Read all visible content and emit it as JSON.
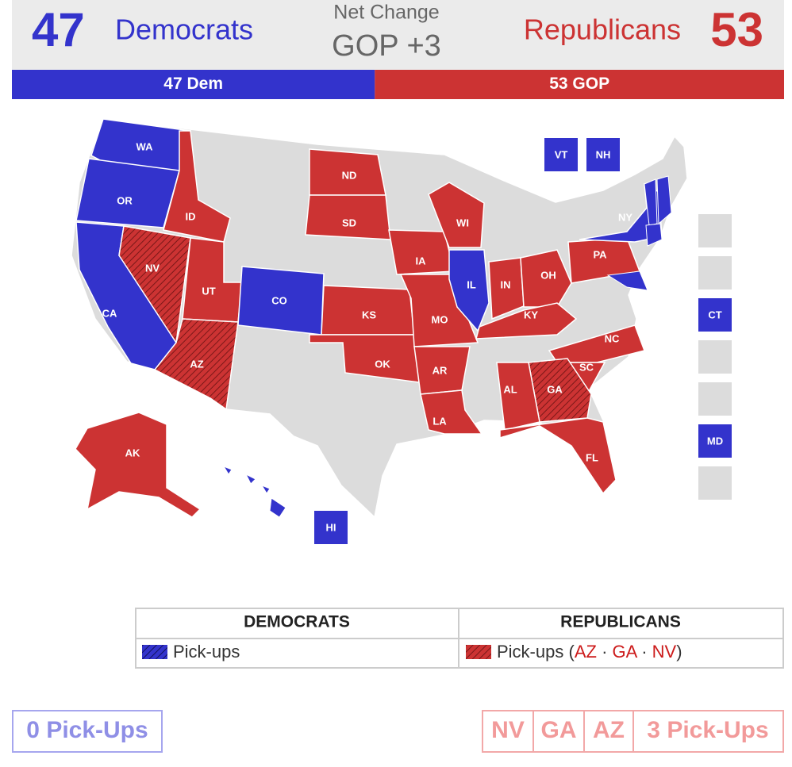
{
  "header": {
    "dem_count": "47",
    "dem_label": "Democrats",
    "net_change_label": "Net Change",
    "net_change": "GOP +3",
    "rep_label": "Republicans",
    "rep_count": "53"
  },
  "balance_bar": {
    "dem": {
      "label": "47 Dem",
      "seats": 47
    },
    "rep": {
      "label": "53 GOP",
      "seats": 53
    }
  },
  "map": {
    "states": [
      {
        "label": "WA",
        "party": "dem",
        "pickup": false
      },
      {
        "label": "OR",
        "party": "dem",
        "pickup": false
      },
      {
        "label": "CA",
        "party": "dem",
        "pickup": false
      },
      {
        "label": "ID",
        "party": "rep",
        "pickup": false
      },
      {
        "label": "NV",
        "party": "rep",
        "pickup": true
      },
      {
        "label": "UT",
        "party": "rep",
        "pickup": false
      },
      {
        "label": "AZ",
        "party": "rep",
        "pickup": true
      },
      {
        "label": "CO",
        "party": "dem",
        "pickup": false
      },
      {
        "label": "ND",
        "party": "rep",
        "pickup": false
      },
      {
        "label": "SD",
        "party": "rep",
        "pickup": false
      },
      {
        "label": "KS",
        "party": "rep",
        "pickup": false
      },
      {
        "label": "OK",
        "party": "rep",
        "pickup": false
      },
      {
        "label": "IA",
        "party": "rep",
        "pickup": false
      },
      {
        "label": "MO",
        "party": "rep",
        "pickup": false
      },
      {
        "label": "AR",
        "party": "rep",
        "pickup": false
      },
      {
        "label": "LA",
        "party": "rep",
        "pickup": false
      },
      {
        "label": "WI",
        "party": "rep",
        "pickup": false
      },
      {
        "label": "IL",
        "party": "dem",
        "pickup": false
      },
      {
        "label": "IN",
        "party": "rep",
        "pickup": false
      },
      {
        "label": "OH",
        "party": "rep",
        "pickup": false
      },
      {
        "label": "KY",
        "party": "rep",
        "pickup": false
      },
      {
        "label": "PA",
        "party": "rep",
        "pickup": false
      },
      {
        "label": "NY",
        "party": "dem",
        "pickup": false
      },
      {
        "label": "NC",
        "party": "rep",
        "pickup": false
      },
      {
        "label": "SC",
        "party": "rep",
        "pickup": false
      },
      {
        "label": "GA",
        "party": "rep",
        "pickup": true
      },
      {
        "label": "AL",
        "party": "rep",
        "pickup": false
      },
      {
        "label": "FL",
        "party": "rep",
        "pickup": false
      },
      {
        "label": "AK",
        "party": "rep",
        "pickup": false
      }
    ],
    "boxes": [
      {
        "label": "VT",
        "party": "dem"
      },
      {
        "label": "NH",
        "party": "dem"
      },
      {
        "label": "CT",
        "party": "dem"
      },
      {
        "label": "MD",
        "party": "dem"
      },
      {
        "label": "HI",
        "party": "dem"
      }
    ]
  },
  "legend": {
    "headers": [
      "DEMOCRATS",
      "REPUBLICANS"
    ],
    "dem_pickups": "Pick-ups",
    "rep_pickups": {
      "label": "Pick-ups",
      "open": "(",
      "items": [
        "AZ",
        "GA",
        "NV"
      ],
      "sep": "·",
      "close": ")"
    }
  },
  "footer": {
    "dem": "0 Pick-Ups",
    "rep_states": [
      "NV",
      "GA",
      "AZ"
    ],
    "rep": "3 Pick-Ups"
  }
}
